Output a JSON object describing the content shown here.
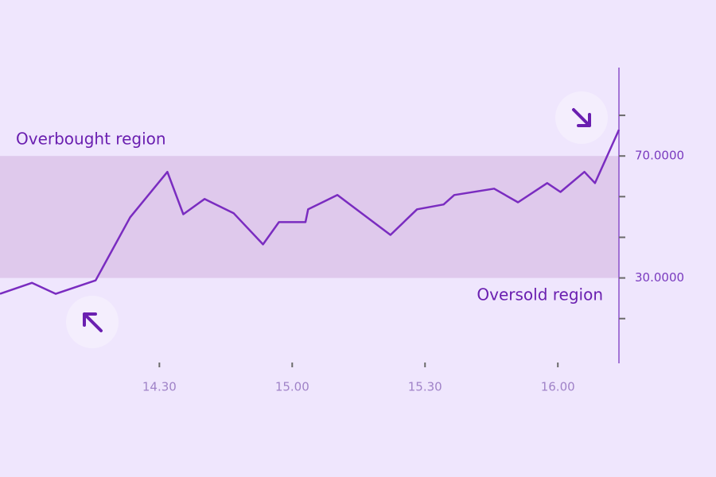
{
  "chart_data": {
    "type": "line",
    "x": [
      13.9,
      14.02,
      14.11,
      14.26,
      14.39,
      14.53,
      14.59,
      14.67,
      14.78,
      14.89,
      14.95,
      15.05,
      15.06,
      15.17,
      15.37,
      15.47,
      15.57,
      15.61,
      15.76,
      15.85,
      15.96,
      16.01,
      16.1,
      16.14,
      16.23
    ],
    "values": [
      24.8,
      28.4,
      24.8,
      29.2,
      49.9,
      64.8,
      50.9,
      55.9,
      51.2,
      41.0,
      48.3,
      48.3,
      52.5,
      57.2,
      44.1,
      52.5,
      54.1,
      57.2,
      59.3,
      54.8,
      61.1,
      58.2,
      64.8,
      61.1,
      78.6
    ],
    "color": "#7a2cc0",
    "xlim": [
      13.9,
      16.23
    ],
    "xticks": [
      {
        "value": 14.5,
        "label": "14.30"
      },
      {
        "value": 15,
        "label": "15.00"
      },
      {
        "value": 15.5,
        "label": "15.30"
      },
      {
        "value": 16,
        "label": "16.00"
      }
    ],
    "ylim": [
      2,
      99
    ],
    "yticks": [
      {
        "value": 30,
        "label": "30.0000"
      },
      {
        "value": 70,
        "label": "70.0000"
      }
    ],
    "yminor_ticks": [
      16.67,
      43.33,
      56.67,
      83.33
    ],
    "shaded_range": [
      30,
      70
    ],
    "shaded_color": "#dfc9ec",
    "annotations": [
      "Overbought region",
      "Oversold region"
    ]
  }
}
